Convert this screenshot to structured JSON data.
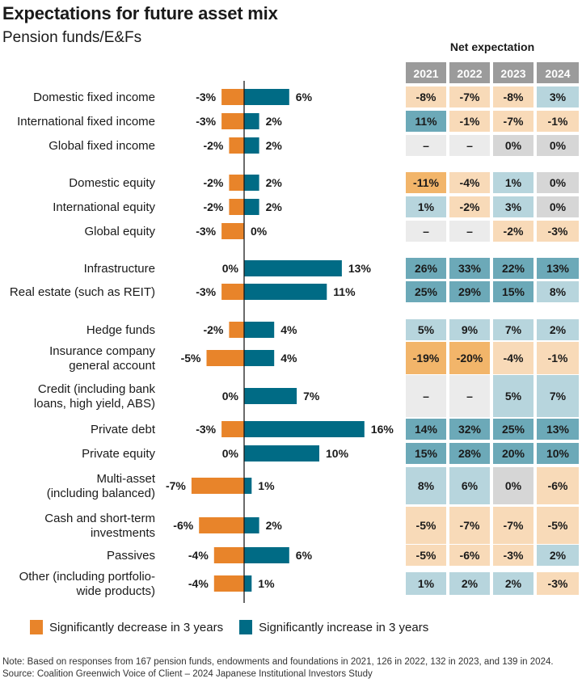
{
  "title": "Expectations for future asset mix",
  "subtitle": "Pension funds/E&Fs",
  "net_expectation_title": "Net expectation",
  "colors": {
    "decrease": "#E8842A",
    "increase": "#006B85",
    "header_bg": "#9B9B9B",
    "strong_increase": "#6CA9B8",
    "mild_increase": "#B7D5DD",
    "neutral": "#D6D6D6",
    "na": "#EBEBEB",
    "mild_decrease": "#F8DAB8",
    "strong_decrease": "#F2B56A"
  },
  "legend": [
    {
      "label": "Significantly decrease in 3 years",
      "key": "decrease"
    },
    {
      "label": "Significantly increase in 3 years",
      "key": "increase"
    }
  ],
  "note": "Note: Based on responses from 167 pension funds, endowments and foundations in 2021, 126 in 2022, 132 in 2023, and 139 in 2024.",
  "source": "Source: Coalition Greenwich Voice of Client – 2024 Japanese Institutional Investors Study",
  "chart_data": {
    "type": "bar",
    "orientation": "horizontal-diverging",
    "title": "Expectations for future asset mix",
    "subtitle": "Pension funds/E&Fs",
    "xlabel": "",
    "ylabel": "",
    "unit": "%",
    "series": [
      {
        "name": "Significantly decrease in 3 years",
        "values": [
          -3,
          -3,
          -2,
          -2,
          -2,
          -3,
          0,
          -3,
          -2,
          -5,
          0,
          -3,
          0,
          -7,
          -6,
          -4,
          -4
        ]
      },
      {
        "name": "Significantly increase in 3 years",
        "values": [
          6,
          2,
          2,
          2,
          2,
          0,
          13,
          11,
          4,
          4,
          7,
          16,
          10,
          1,
          2,
          6,
          1
        ]
      }
    ],
    "categories": [
      "Domestic fixed income",
      "International fixed income",
      "Global fixed income",
      "Domestic equity",
      "International equity",
      "Global equity",
      "Infrastructure",
      "Real estate (such as REIT)",
      "Hedge funds",
      "Insurance company general account",
      "Credit (including bank loans, high yield, ABS)",
      "Private debt",
      "Private equity",
      "Multi-asset (including balanced)",
      "Cash and short-term investments",
      "Passives",
      "Other (including portfolio-wide products)"
    ],
    "category_lines": [
      [
        "Domestic fixed income"
      ],
      [
        "International fixed income"
      ],
      [
        "Global fixed income"
      ],
      [
        "Domestic equity"
      ],
      [
        "International equity"
      ],
      [
        "Global equity"
      ],
      [
        "Infrastructure"
      ],
      [
        "Real estate (such as REIT)"
      ],
      [
        "Hedge funds"
      ],
      [
        "Insurance company",
        "general account"
      ],
      [
        "Credit (including bank",
        "loans, high yield, ABS)"
      ],
      [
        "Private debt"
      ],
      [
        "Private equity"
      ],
      [
        "Multi-asset",
        "(including balanced)"
      ],
      [
        "Cash and short-term",
        "investments"
      ],
      [
        "Passives"
      ],
      [
        "Other (including portfolio-",
        "wide products)"
      ]
    ],
    "groups": [
      [
        0,
        1,
        2
      ],
      [
        3,
        4,
        5
      ],
      [
        6,
        7
      ],
      [
        8,
        9,
        10,
        11,
        12,
        13,
        14,
        15
      ],
      [
        16
      ]
    ],
    "legend_position": "bottom",
    "grid": false,
    "net_expectation_table": {
      "title": "Net expectation",
      "columns": [
        "2021",
        "2022",
        "2023",
        "2024"
      ],
      "rows": [
        [
          "-8%",
          "-7%",
          "-8%",
          "3%"
        ],
        [
          "11%",
          "-1%",
          "-7%",
          "-1%"
        ],
        [
          "–",
          "–",
          "0%",
          "0%"
        ],
        [
          "-11%",
          "-4%",
          "1%",
          "0%"
        ],
        [
          "1%",
          "-2%",
          "3%",
          "0%"
        ],
        [
          "–",
          "–",
          "-2%",
          "-3%"
        ],
        [
          "26%",
          "33%",
          "22%",
          "13%"
        ],
        [
          "25%",
          "29%",
          "15%",
          "8%"
        ],
        [
          "5%",
          "9%",
          "7%",
          "2%"
        ],
        [
          "-19%",
          "-20%",
          "-4%",
          "-1%"
        ],
        [
          "–",
          "–",
          "5%",
          "7%"
        ],
        [
          "14%",
          "32%",
          "25%",
          "13%"
        ],
        [
          "15%",
          "28%",
          "20%",
          "10%"
        ],
        [
          "8%",
          "6%",
          "0%",
          "-6%"
        ],
        [
          "-5%",
          "-7%",
          "-7%",
          "-5%"
        ],
        [
          "-5%",
          "-6%",
          "-3%",
          "2%"
        ],
        [
          "1%",
          "2%",
          "2%",
          "-3%"
        ]
      ]
    }
  }
}
